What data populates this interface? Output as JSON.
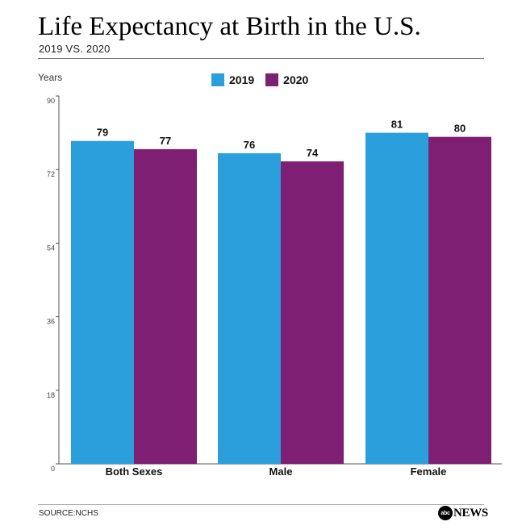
{
  "header": {
    "title": "Life Expectancy at Birth in the U.S.",
    "subtitle": "2019 VS. 2020"
  },
  "footer": {
    "source": "SOURCE:NCHS",
    "logo_disc": "abc",
    "logo_text": "NEWS"
  },
  "colors": {
    "2019": "#2a9fdc",
    "2020": "#7f1f74"
  },
  "chart_data": {
    "type": "bar",
    "title": "Life Expectancy at Birth in the U.S.",
    "subtitle": "2019 VS. 2020",
    "xlabel": "",
    "ylabel": "Years",
    "ylim": [
      0,
      90
    ],
    "yticks": [
      0,
      18,
      36,
      54,
      72,
      90
    ],
    "categories": [
      "Both Sexes",
      "Male",
      "Female"
    ],
    "series": [
      {
        "name": "2019",
        "values": [
          79,
          76,
          81
        ]
      },
      {
        "name": "2020",
        "values": [
          77,
          74,
          80
        ]
      }
    ],
    "legend_position": "top-center",
    "grid": false
  }
}
